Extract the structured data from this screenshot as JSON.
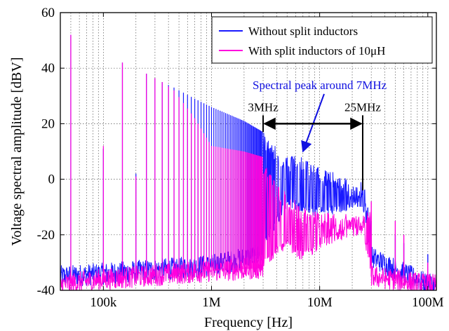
{
  "chart_data": {
    "type": "line",
    "title": "",
    "xlabel": "Frequency [Hz]",
    "ylabel": "Voltage spectral amplitude [dBV]",
    "x_scale": "log",
    "xlim": [
      40000,
      120000000
    ],
    "ylim": [
      -40,
      60
    ],
    "grid": true,
    "x_ticks": [
      {
        "value": 100000,
        "label": "100k"
      },
      {
        "value": 1000000,
        "label": "1M"
      },
      {
        "value": 10000000,
        "label": "10M"
      },
      {
        "value": 100000000,
        "label": "100M"
      }
    ],
    "y_ticks": [
      {
        "value": -40,
        "label": "-40"
      },
      {
        "value": -20,
        "label": "-20"
      },
      {
        "value": 0,
        "label": "0"
      },
      {
        "value": 20,
        "label": "20"
      },
      {
        "value": 40,
        "label": "40"
      },
      {
        "value": 60,
        "label": "60"
      }
    ],
    "legend_position": "top-right",
    "series": [
      {
        "name": "Without split inductors",
        "color": "#1a1aff",
        "peaks": [
          {
            "x": 50000,
            "y": 52
          },
          {
            "x": 100000,
            "y": 11
          },
          {
            "x": 150000,
            "y": 42
          },
          {
            "x": 200000,
            "y": 2
          },
          {
            "x": 250000,
            "y": 38
          },
          {
            "x": 350000,
            "y": 35
          },
          {
            "x": 450000,
            "y": 33
          },
          {
            "x": 700000,
            "y": 29
          },
          {
            "x": 1000000,
            "y": 26
          },
          {
            "x": 2000000,
            "y": 21
          },
          {
            "x": 3000000,
            "y": 17
          },
          {
            "x": 4000000,
            "y": 12
          },
          {
            "x": 5000000,
            "y": 8
          },
          {
            "x": 7000000,
            "y": 9
          },
          {
            "x": 8000000,
            "y": 7
          },
          {
            "x": 10000000,
            "y": 4
          },
          {
            "x": 15000000,
            "y": 2
          },
          {
            "x": 20000000,
            "y": -1
          },
          {
            "x": 25000000,
            "y": 0
          },
          {
            "x": 30000000,
            "y": -15
          },
          {
            "x": 50000000,
            "y": -20
          },
          {
            "x": 60000000,
            "y": -23
          },
          {
            "x": 100000000,
            "y": -27
          }
        ],
        "floor": [
          {
            "x": 40000,
            "y": -35
          },
          {
            "x": 100000,
            "y": -34
          },
          {
            "x": 1000000,
            "y": -31
          },
          {
            "x": 3000000,
            "y": -27
          },
          {
            "x": 5000000,
            "y": -10
          },
          {
            "x": 10000000,
            "y": -14
          },
          {
            "x": 25000000,
            "y": -10
          },
          {
            "x": 30000000,
            "y": -28
          },
          {
            "x": 100000000,
            "y": -38
          }
        ]
      },
      {
        "name": "With split inductors of 10μH",
        "color": "#ff00dd",
        "peaks": [
          {
            "x": 50000,
            "y": 52
          },
          {
            "x": 100000,
            "y": 12
          },
          {
            "x": 150000,
            "y": 42
          },
          {
            "x": 200000,
            "y": 1
          },
          {
            "x": 250000,
            "y": 38
          },
          {
            "x": 350000,
            "y": 35
          },
          {
            "x": 450000,
            "y": 32
          },
          {
            "x": 700000,
            "y": 22
          },
          {
            "x": 1000000,
            "y": 12
          },
          {
            "x": 2000000,
            "y": 10
          },
          {
            "x": 3000000,
            "y": 8
          },
          {
            "x": 4000000,
            "y": -2
          },
          {
            "x": 5000000,
            "y": -5
          },
          {
            "x": 7000000,
            "y": -10
          },
          {
            "x": 10000000,
            "y": -12
          },
          {
            "x": 15000000,
            "y": -12
          },
          {
            "x": 20000000,
            "y": -13
          },
          {
            "x": 25000000,
            "y": -13
          },
          {
            "x": 30000000,
            "y": -8
          },
          {
            "x": 50000000,
            "y": -15
          },
          {
            "x": 60000000,
            "y": -20
          },
          {
            "x": 100000000,
            "y": -30
          }
        ],
        "floor": [
          {
            "x": 40000,
            "y": -38
          },
          {
            "x": 100000,
            "y": -36
          },
          {
            "x": 1000000,
            "y": -33
          },
          {
            "x": 3000000,
            "y": -32
          },
          {
            "x": 5000000,
            "y": -25
          },
          {
            "x": 7000000,
            "y": -30
          },
          {
            "x": 10000000,
            "y": -25
          },
          {
            "x": 25000000,
            "y": -20
          },
          {
            "x": 30000000,
            "y": -35
          },
          {
            "x": 100000000,
            "y": -38
          }
        ]
      }
    ],
    "annotations": {
      "peak_label": "Spectral peak around 7MHz",
      "peak_target": {
        "x": 7000000,
        "y": 10
      },
      "range_start_label": "3MHz",
      "range_end_label": "25MHz",
      "range_start": 3000000,
      "range_end": 25000000,
      "range_y": 20
    }
  }
}
